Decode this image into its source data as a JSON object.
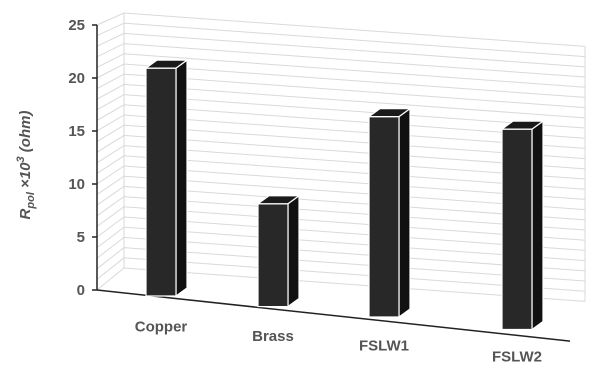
{
  "chart_data": {
    "type": "bar",
    "style": "3d-column",
    "categories": [
      "Copper",
      "Brass",
      "FSLW1",
      "FSLW2"
    ],
    "values": [
      21.5,
      9.7,
      18.9,
      18.9
    ],
    "ylabel": {
      "base": "R",
      "subscript": "pol",
      "times": " ×10",
      "superscript": "3",
      "unit": " (ohm)"
    },
    "ylim": [
      0,
      25
    ],
    "yticks": [
      "0",
      "5",
      "10",
      "15",
      "20",
      "25"
    ],
    "grid": true,
    "bar_color": "#282828"
  }
}
